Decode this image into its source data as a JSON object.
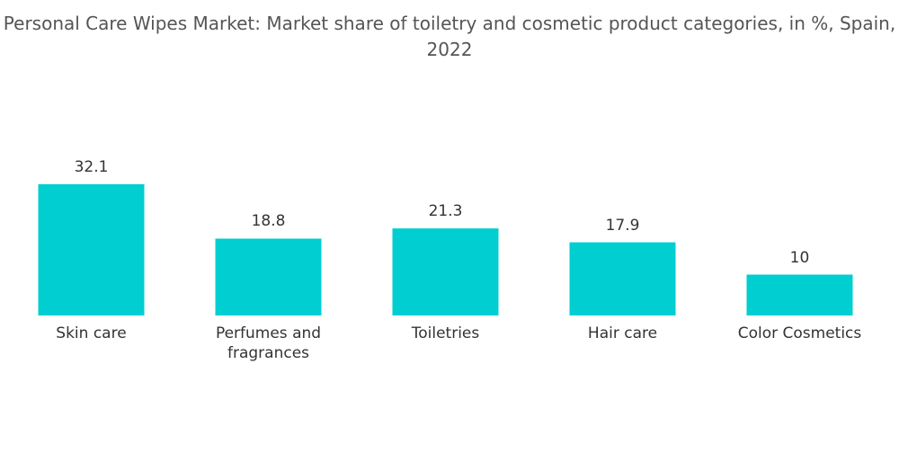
{
  "chart_data": {
    "type": "bar",
    "title": "Personal Care Wipes Market: Market share of toiletry and cosmetic product categories, in %, Spain, 2022",
    "categories": [
      "Skin care",
      "Perfumes and fragrances",
      "Toiletries",
      "Hair care",
      "Color Cosmetics"
    ],
    "values": [
      32.1,
      18.8,
      21.3,
      17.9,
      10
    ],
    "color": "#00ced1"
  }
}
